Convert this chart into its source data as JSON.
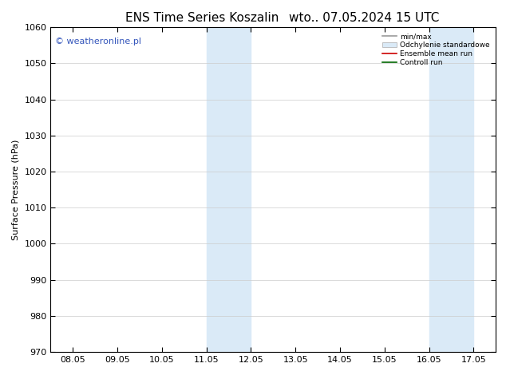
{
  "title_left": "ENS Time Series Koszalin",
  "title_right": "wto.. 07.05.2024 15 UTC",
  "ylabel": "Surface Pressure (hPa)",
  "ylim": [
    970,
    1060
  ],
  "yticks": [
    970,
    980,
    990,
    1000,
    1010,
    1020,
    1030,
    1040,
    1050,
    1060
  ],
  "xtick_labels": [
    "08.05",
    "09.05",
    "10.05",
    "11.05",
    "12.05",
    "13.05",
    "14.05",
    "15.05",
    "16.05",
    "17.05"
  ],
  "n_xticks": 10,
  "xlim": [
    0.0,
    9.0
  ],
  "shaded_bands": [
    {
      "xmin": 3.0,
      "xmax": 4.0,
      "color": "#daeaf7"
    },
    {
      "xmin": 8.0,
      "xmax": 9.0,
      "color": "#daeaf7"
    }
  ],
  "watermark": "© weatheronline.pl",
  "watermark_color": "#3355bb",
  "legend_entries": [
    {
      "label": "min/max",
      "color": "#999999",
      "lw": 1.2,
      "style": "line"
    },
    {
      "label": "Odchylenie standardowe",
      "color": "#daeaf7",
      "edge": "#aaaaaa",
      "style": "patch"
    },
    {
      "label": "Ensemble mean run",
      "color": "#cc0000",
      "lw": 1.2,
      "style": "line"
    },
    {
      "label": "Controll run",
      "color": "#006600",
      "lw": 1.2,
      "style": "line"
    }
  ],
  "background_color": "#ffffff",
  "spine_color": "#000000",
  "tick_color": "#000000",
  "title_fontsize": 11,
  "axis_fontsize": 8,
  "tick_fontsize": 8
}
